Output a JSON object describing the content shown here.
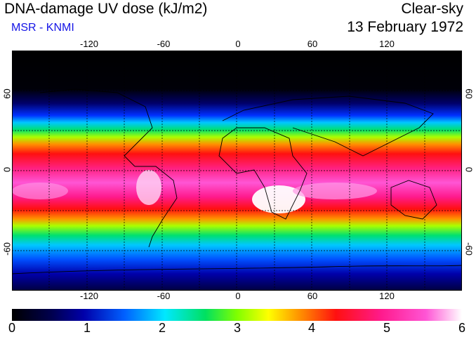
{
  "header": {
    "title": "DNA-damage UV dose (kJ/m2)",
    "credit": "MSR - KNMI",
    "sky_condition": "Clear-sky",
    "date": "13 February 1972"
  },
  "map": {
    "projection": "equirectangular",
    "lon_range": [
      -180,
      180
    ],
    "lat_range": [
      -90,
      90
    ],
    "lon_ticks": [
      "-120",
      "-60",
      "0",
      "60",
      "120"
    ],
    "lat_ticks_left": [
      "60",
      "0",
      "-60"
    ],
    "lat_ticks_right": [
      "60",
      "0",
      "-60"
    ],
    "grid": "dotted every 30 degrees",
    "coastlines": true
  },
  "colorbar": {
    "min": 0,
    "max": 6,
    "labels": [
      "0",
      "1",
      "2",
      "3",
      "4",
      "5",
      "6"
    ],
    "colors": [
      "#000000",
      "#0000aa",
      "#0060ff",
      "#00e8ff",
      "#00e060",
      "#80ff00",
      "#ffff00",
      "#ff9000",
      "#ff1010",
      "#ff1a8c",
      "#ff55d5",
      "#ffffff"
    ]
  }
}
